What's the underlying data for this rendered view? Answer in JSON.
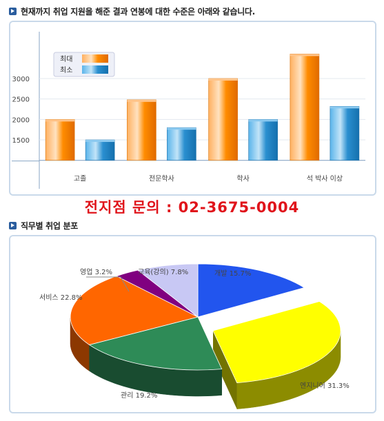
{
  "header1": {
    "title": "현재까지 취업 지원을 해준 결과 연봉에 대한 수준은 아래와 같습니다."
  },
  "header2": {
    "title": "직무별 취업 분포"
  },
  "contact": {
    "text": "전지점 문의 : 02-3675-0004"
  },
  "colors": {
    "max": "#ff8c00",
    "min": "#2a8fd0",
    "panel_border": "#c9d9ea",
    "icon": "#2a5d9e",
    "contact": "#e0141b"
  },
  "chart_data": [
    {
      "type": "bar",
      "categories": [
        "고졸",
        "전문학사",
        "학사",
        "석 박사 이상"
      ],
      "series": [
        {
          "name": "최대",
          "values": [
            2000,
            2480,
            3000,
            3600
          ]
        },
        {
          "name": "최소",
          "values": [
            1500,
            1800,
            2000,
            2320
          ]
        }
      ],
      "yticks": [
        1500,
        2000,
        2500,
        3000
      ],
      "ylim": [
        1000,
        3800
      ],
      "legend": "top-left",
      "grid": true
    },
    {
      "type": "pie",
      "slices": [
        {
          "label": "개발",
          "value": 15.7,
          "text": "개발  15.7%",
          "color": "#2255ee"
        },
        {
          "label": "엔지니어",
          "value": 31.3,
          "text": "엔지니어  31.3%",
          "color": "#ffff00"
        },
        {
          "label": "관리",
          "value": 19.2,
          "text": "관리  19.2%",
          "color": "#2e8b57"
        },
        {
          "label": "서비스",
          "value": 22.8,
          "text": "서비스  22.8%",
          "color": "#ff6600"
        },
        {
          "label": "영업",
          "value": 3.2,
          "text": "영업  3.2%",
          "color": "#800080"
        },
        {
          "label": "교육(강의)",
          "value": 7.8,
          "text": "교육(강의)  7.8%",
          "color": "#c8c8f4"
        }
      ]
    }
  ]
}
